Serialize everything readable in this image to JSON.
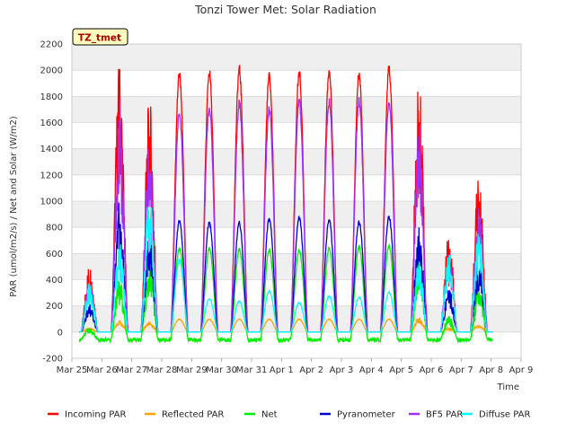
{
  "chart_data": {
    "type": "line",
    "title": "Tonzi Tower Met: Solar Radiation",
    "xlabel": "Time",
    "ylabel": "PAR (umol/m2/s) / Net and Solar (W/m2)",
    "site_badge": "TZ_tmet",
    "ylim": [
      -200,
      2200
    ],
    "yticks": [
      -200,
      0,
      200,
      400,
      600,
      800,
      1000,
      1200,
      1400,
      1600,
      1800,
      2000,
      2200
    ],
    "xlim": [
      0,
      15
    ],
    "xticks": [
      {
        "x": 0,
        "label": "Mar 25"
      },
      {
        "x": 1,
        "label": "Mar 26"
      },
      {
        "x": 2,
        "label": "Mar 27"
      },
      {
        "x": 3,
        "label": "Mar 28"
      },
      {
        "x": 4,
        "label": "Mar 29"
      },
      {
        "x": 5,
        "label": "Mar 30"
      },
      {
        "x": 6,
        "label": "Mar 31"
      },
      {
        "x": 7,
        "label": "Apr 1"
      },
      {
        "x": 8,
        "label": "Apr 2"
      },
      {
        "x": 9,
        "label": "Apr 3"
      },
      {
        "x": 10,
        "label": "Apr 4"
      },
      {
        "x": 11,
        "label": "Apr 5"
      },
      {
        "x": 12,
        "label": "Apr 6"
      },
      {
        "x": 13,
        "label": "Apr 7"
      },
      {
        "x": 14,
        "label": "Apr 8"
      },
      {
        "x": 15,
        "label": "Apr 9"
      }
    ],
    "grid": true,
    "legend_position": "bottom",
    "day_offsets": [
      0.3,
      1.3,
      2.3,
      3.3,
      4.3,
      5.3,
      6.3,
      7.3,
      8.3,
      9.3,
      10.3,
      11.3,
      12.3,
      13.3
    ],
    "series": [
      {
        "name": "Incoming PAR",
        "color": "#ff0000",
        "daily_peak": [
          530,
          2100,
          1810,
          2010,
          2020,
          2040,
          1990,
          2020,
          2030,
          2010,
          2050,
          1930,
          770,
          1240
        ]
      },
      {
        "name": "Reflected PAR",
        "color": "#ffa500",
        "daily_peak": [
          30,
          90,
          80,
          100,
          100,
          100,
          100,
          100,
          100,
          100,
          100,
          110,
          30,
          60
        ]
      },
      {
        "name": "Net",
        "color": "#00ee00",
        "daily_peak": [
          30,
          420,
          560,
          650,
          650,
          640,
          640,
          640,
          650,
          660,
          670,
          580,
          130,
          340
        ],
        "night_value": -60
      },
      {
        "name": "Pyranometer",
        "color": "#0000cc",
        "daily_peak": [
          210,
          1000,
          770,
          860,
          850,
          850,
          880,
          890,
          870,
          860,
          900,
          840,
          340,
          560
        ]
      },
      {
        "name": "BF5 PAR",
        "color": "#9b30ff",
        "daily_peak": [
          420,
          1800,
          1480,
          1700,
          1750,
          1780,
          1740,
          1790,
          1800,
          1800,
          1800,
          1650,
          620,
          960
        ]
      },
      {
        "name": "Diffuse PAR",
        "color": "#00ffff",
        "daily_peak": [
          380,
          700,
          1080,
          560,
          260,
          240,
          320,
          230,
          280,
          270,
          310,
          570,
          650,
          770
        ]
      }
    ]
  }
}
